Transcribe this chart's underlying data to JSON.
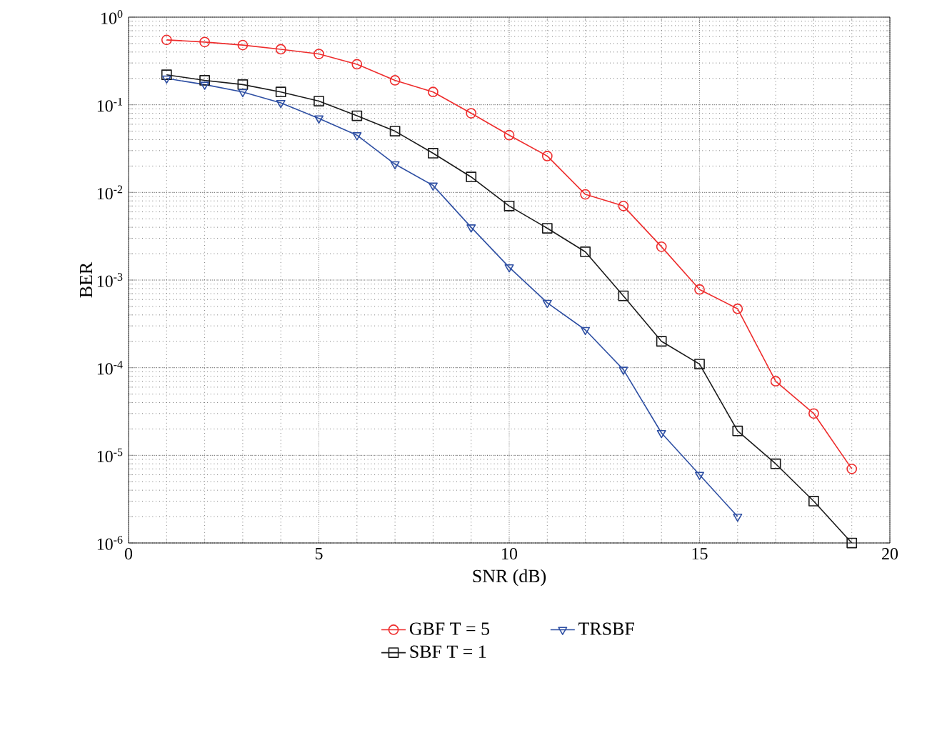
{
  "chart_data": {
    "type": "line",
    "xlabel": "SNR (dB)",
    "ylabel": "BER",
    "log": "y",
    "grid": true,
    "legend": "bottom",
    "line_style": "solid",
    "xlim": [
      0,
      20
    ],
    "xticks": [
      0,
      5,
      10,
      15,
      20
    ],
    "ylim": [
      1e-06,
      1
    ],
    "yticks": [
      {
        "value": 1e-06,
        "label": "10$^{-6}$"
      },
      {
        "value": 1e-05,
        "label": "10$^{-5}$"
      },
      {
        "value": 0.0001,
        "label": "10$^{-4}$"
      },
      {
        "value": 0.001,
        "label": "10$^{-3}$"
      },
      {
        "value": 0.01,
        "label": "10$^{-2}$"
      },
      {
        "value": 0.1,
        "label": "10$^{-1}$"
      },
      {
        "value": 1,
        "label": "10$^{0}$"
      }
    ],
    "series": [
      {
        "name": "GBF T = 5",
        "color": "#ee2c2c",
        "marker": "circle",
        "x": [
          1,
          2,
          3,
          4,
          5,
          6,
          7,
          8,
          9,
          10,
          11,
          12,
          13,
          14,
          15,
          16,
          17,
          18,
          19
        ],
        "values": [
          0.55,
          0.52,
          0.48,
          0.43,
          0.38,
          0.29,
          0.19,
          0.14,
          0.08,
          0.045,
          0.026,
          0.0095,
          0.007,
          0.0024,
          0.00078,
          0.00047,
          7e-05,
          3e-05,
          7e-06
        ]
      },
      {
        "name": "SBF T = 1",
        "color": "#1a1a1a",
        "marker": "square",
        "x": [
          1,
          2,
          3,
          4,
          5,
          6,
          7,
          8,
          9,
          10,
          11,
          12,
          13,
          14,
          15,
          16,
          17,
          18,
          19
        ],
        "values": [
          0.22,
          0.19,
          0.17,
          0.14,
          0.11,
          0.075,
          0.05,
          0.028,
          0.015,
          0.007,
          0.0039,
          0.0021,
          0.00066,
          0.0002,
          0.00011,
          1.9e-05,
          8e-06,
          3e-06,
          1e-06
        ]
      },
      {
        "name": "TRSBF",
        "color": "#2e4fa3",
        "marker": "triangle",
        "x": [
          1,
          2,
          3,
          4,
          5,
          6,
          7,
          8,
          9,
          10,
          11,
          12,
          13,
          14,
          15,
          16
        ],
        "values": [
          0.2,
          0.17,
          0.14,
          0.105,
          0.07,
          0.045,
          0.021,
          0.012,
          0.004,
          0.0014,
          0.00055,
          0.00027,
          9.5e-05,
          1.8e-05,
          6e-06,
          2e-06
        ]
      }
    ]
  }
}
